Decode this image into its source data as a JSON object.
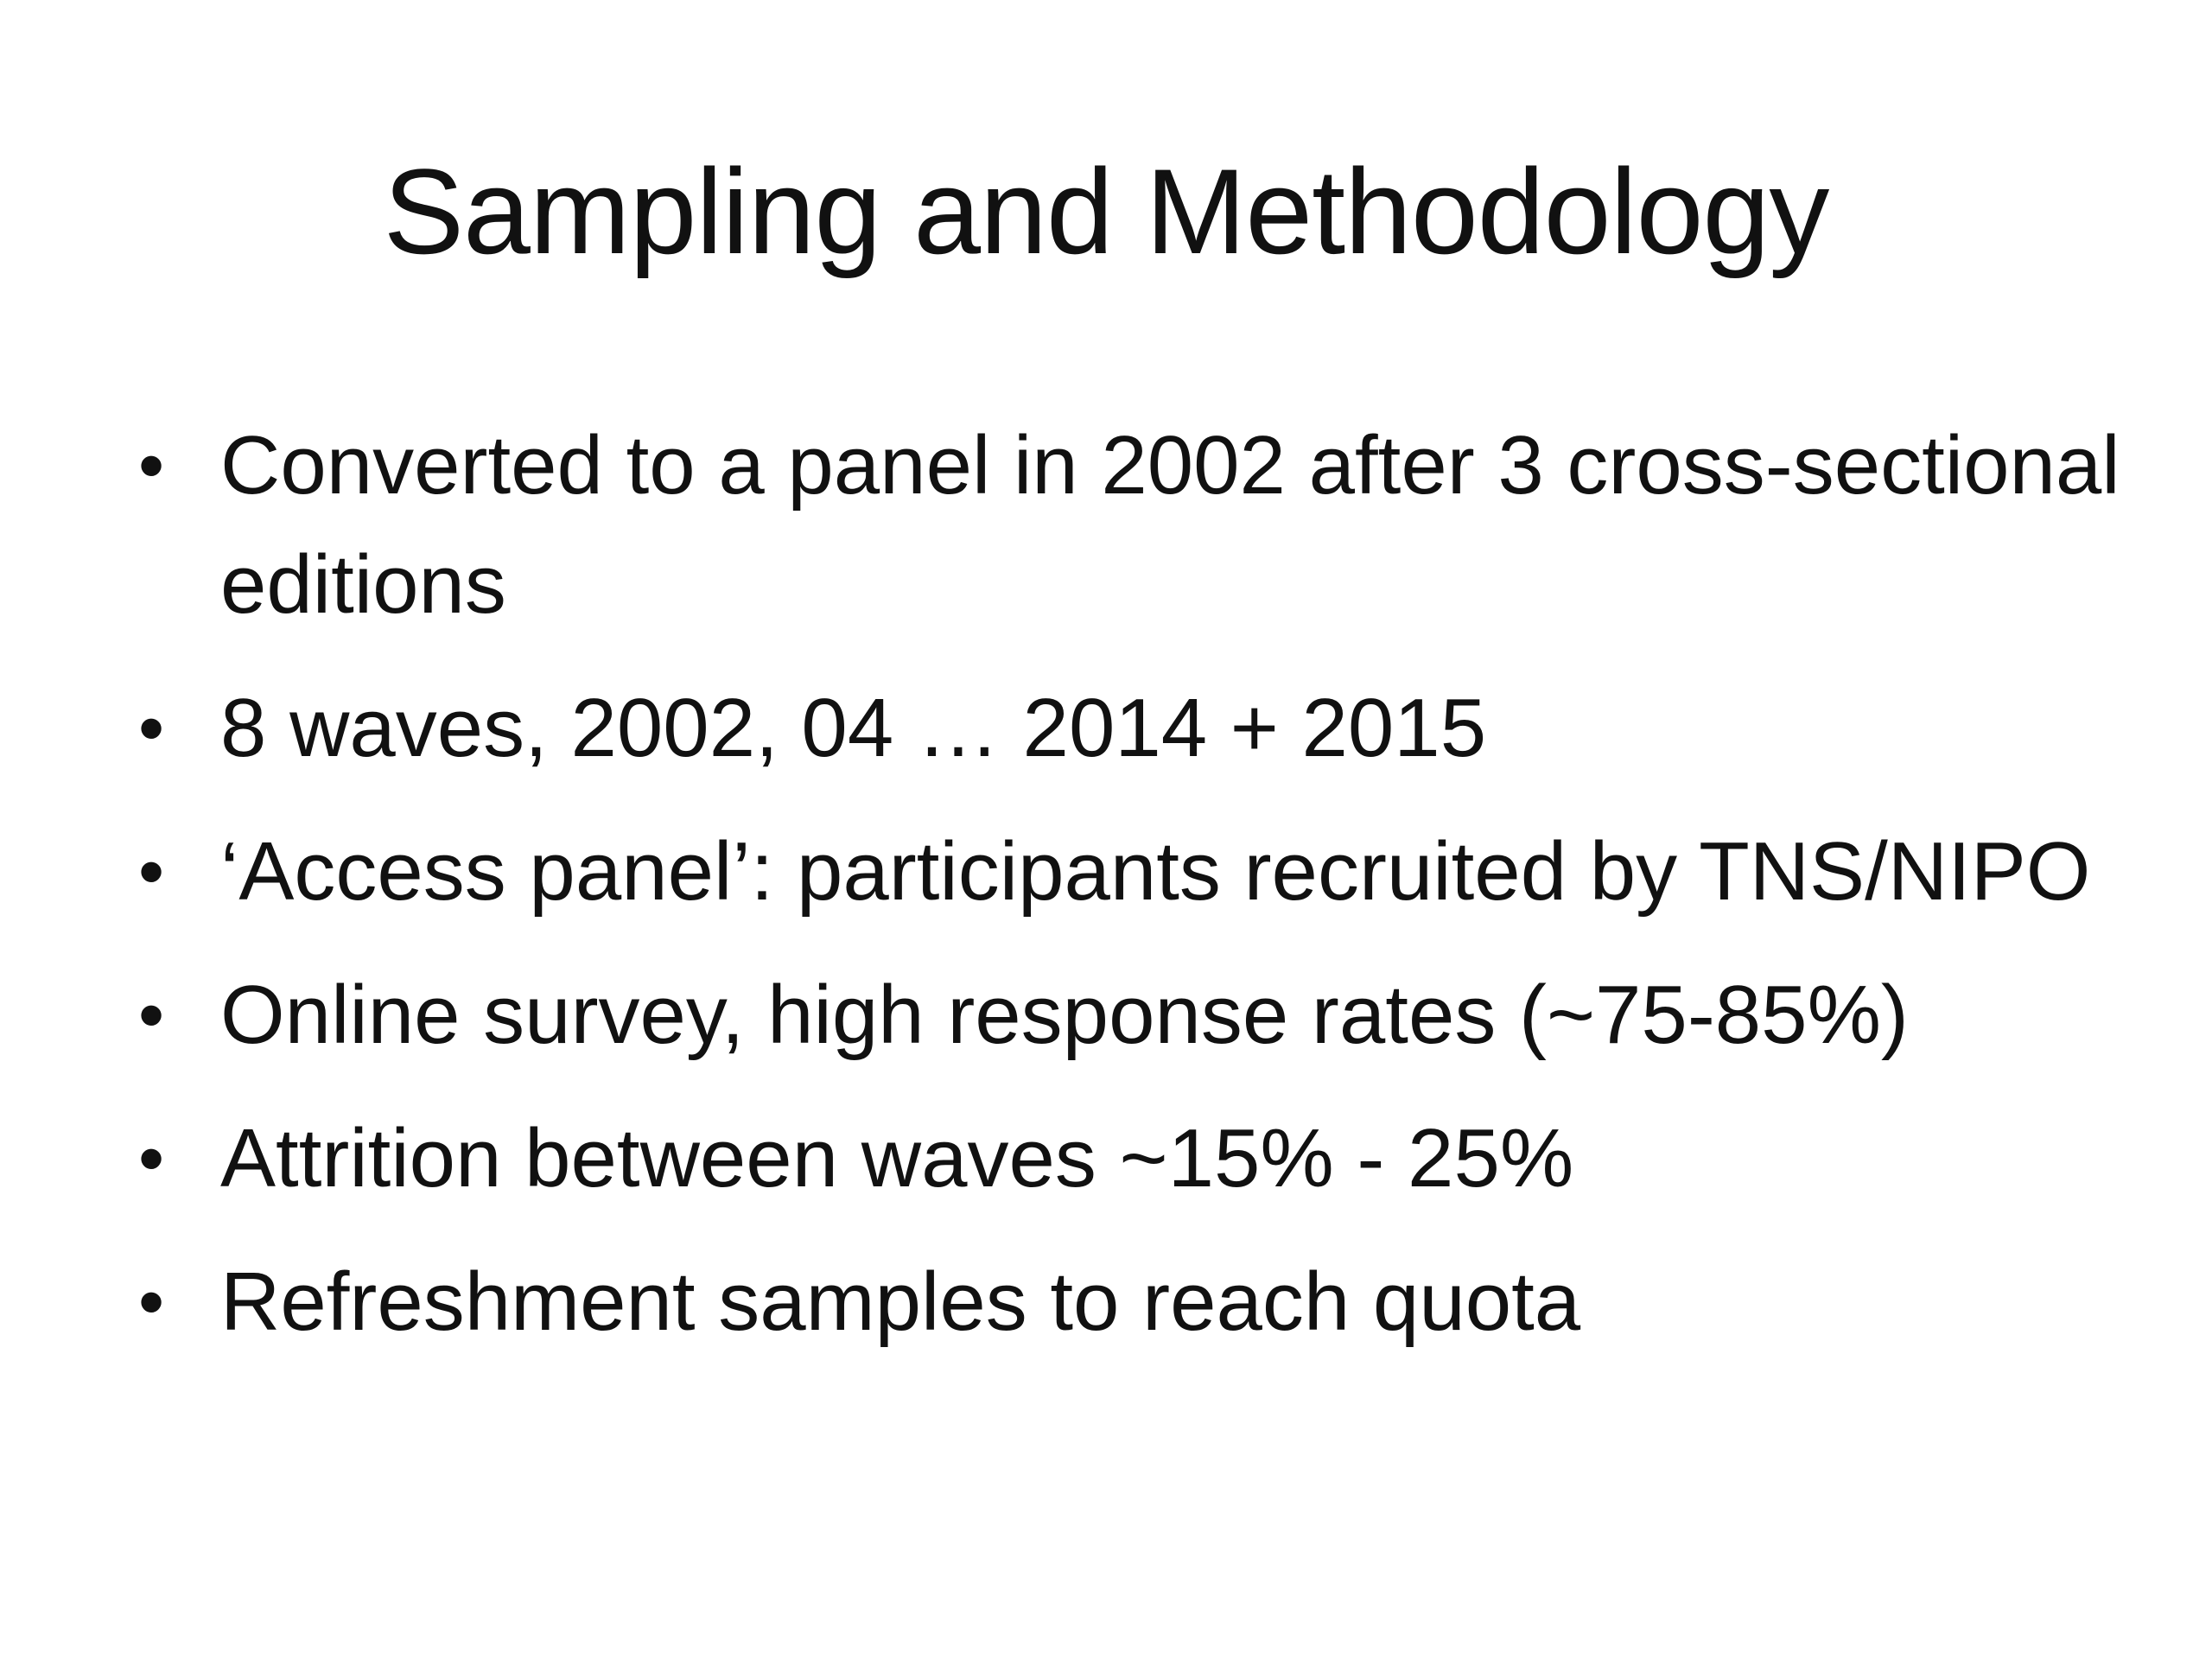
{
  "slide": {
    "title": "Sampling and Methodology",
    "bullets": [
      "Converted to a panel in 2002 after 3 cross-sectional editions",
      "8 waves, 2002, 04 … 2014 + 2015",
      "‘Access panel’: participants recruited by TNS/NIPO",
      "Online survey, high response rates (~75-85%)",
      "Attrition between waves ~15% - 25%",
      "Refreshment samples to reach quota"
    ],
    "bullet_glyph": "•"
  }
}
